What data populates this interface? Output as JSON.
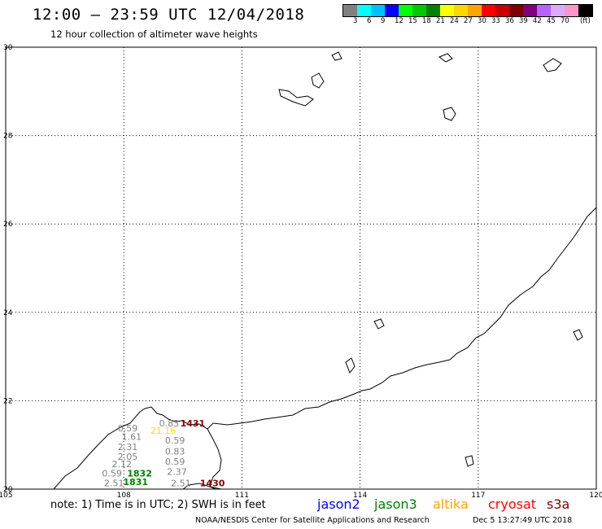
{
  "header": {
    "title": "12:00 – 23:59 UTC 12/04/2018",
    "subtitle": "12 hour collection of altimeter wave heights"
  },
  "legend": {
    "colors": [
      "#808080",
      "#00ffff",
      "#00bfff",
      "#0000ff",
      "#00ff00",
      "#00c800",
      "#008000",
      "#ffff00",
      "#ffd700",
      "#ffa500",
      "#ff0000",
      "#c80000",
      "#800000",
      "#800080",
      "#b464ff",
      "#dcaaff",
      "#ff96c8",
      "#000000"
    ],
    "labels": [
      "3",
      "6",
      "9",
      "12",
      "15",
      "18",
      "21",
      "24",
      "27",
      "30",
      "33",
      "36",
      "39",
      "42",
      "45",
      "70"
    ],
    "unit": "(ft)"
  },
  "axes": {
    "lon_labels": [
      "105",
      "108",
      "111",
      "114",
      "117",
      "120"
    ],
    "lat_labels": [
      "20",
      "22",
      "24",
      "26",
      "28",
      "30"
    ]
  },
  "observations": [
    {
      "text": "0.59",
      "lon": 108.1,
      "lat": 21.31,
      "color": "#808080"
    },
    {
      "text": "1.61",
      "lon": 108.2,
      "lat": 21.11,
      "color": "#808080"
    },
    {
      "text": "2.31",
      "lon": 108.1,
      "lat": 20.88,
      "color": "#808080"
    },
    {
      "text": "2.05",
      "lon": 108.1,
      "lat": 20.66,
      "color": "#808080"
    },
    {
      "text": "2.12",
      "lon": 107.95,
      "lat": 20.5,
      "color": "#808080"
    },
    {
      "text": "0.59",
      "lon": 107.7,
      "lat": 20.29,
      "color": "#808080"
    },
    {
      "text": "2.51",
      "lon": 107.75,
      "lat": 20.06,
      "color": "#808080"
    },
    {
      "text": "1832",
      "lon": 108.4,
      "lat": 20.29,
      "color": "#008000",
      "bold": true
    },
    {
      "text": "1831",
      "lon": 108.3,
      "lat": 20.09,
      "color": "#008000",
      "bold": true
    },
    {
      "text": "0.83",
      "lon": 109.15,
      "lat": 21.42,
      "color": "#808080"
    },
    {
      "text": "21.16",
      "lon": 109.0,
      "lat": 21.25,
      "color": "#e6e600"
    },
    {
      "text": "0.59",
      "lon": 109.3,
      "lat": 21.03,
      "color": "#808080"
    },
    {
      "text": "0.83",
      "lon": 109.3,
      "lat": 20.78,
      "color": "#808080"
    },
    {
      "text": "0.59",
      "lon": 109.3,
      "lat": 20.55,
      "color": "#808080"
    },
    {
      "text": "2.37",
      "lon": 109.35,
      "lat": 20.32,
      "color": "#808080"
    },
    {
      "text": "2.51",
      "lon": 109.45,
      "lat": 20.06,
      "color": "#808080"
    },
    {
      "text": "1431",
      "lon": 109.75,
      "lat": 21.42,
      "color": "#800000",
      "bold": true
    },
    {
      "text": "1430",
      "lon": 110.25,
      "lat": 20.06,
      "color": "#800000",
      "bold": true
    }
  ],
  "footer": {
    "note": "note: 1) Time is in UTC; 2) SWH is in feet",
    "satellites": [
      {
        "name": "jason2",
        "color": "#0000ff"
      },
      {
        "name": "jason3",
        "color": "#008000"
      },
      {
        "name": "altika",
        "color": "#ffa500"
      },
      {
        "name": "cryosat",
        "color": "#ff0000"
      },
      {
        "name": "s3a",
        "color": "#800000"
      }
    ],
    "credit": "NOAA/NESDIS Center for Satellite Applications and Research",
    "timestamp": "Dec  5 13:27:49 UTC 2018"
  }
}
